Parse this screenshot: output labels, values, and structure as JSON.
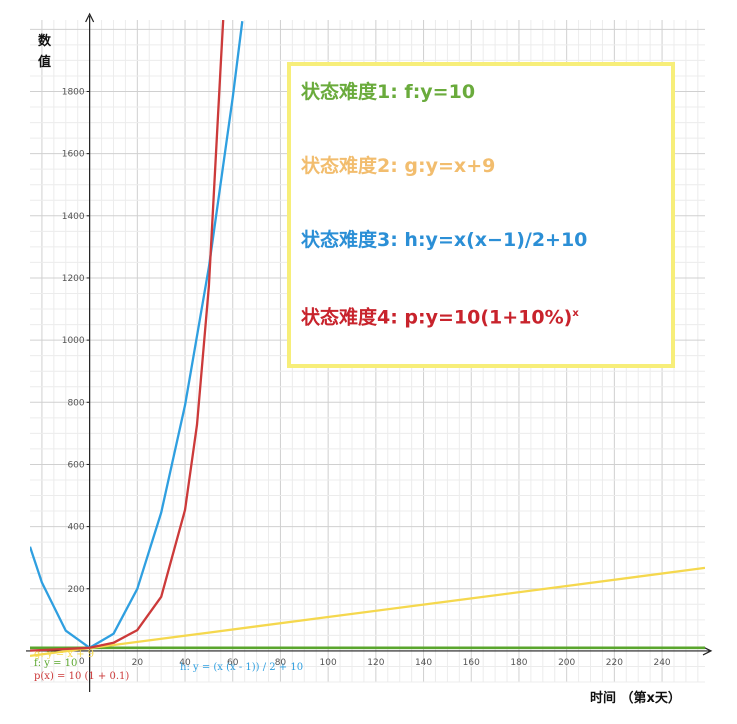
{
  "chart_data": {
    "type": "line",
    "ylabel_top": "数",
    "ylabel_bottom": "值",
    "xlabel": "时间 （第x天）",
    "xlim": [
      -25,
      258
    ],
    "ylim": [
      -100,
      2030
    ],
    "x_ticks": [
      {
        "value": 20,
        "label": "20"
      },
      {
        "value": 40,
        "label": "40"
      },
      {
        "value": 60,
        "label": "60"
      },
      {
        "value": 80,
        "label": "80"
      },
      {
        "value": 100,
        "label": "100"
      },
      {
        "value": 120,
        "label": "120"
      },
      {
        "value": 140,
        "label": "140"
      },
      {
        "value": 160,
        "label": "160"
      },
      {
        "value": 180,
        "label": "180"
      },
      {
        "value": 200,
        "label": "200"
      },
      {
        "value": 220,
        "label": "220"
      },
      {
        "value": 240,
        "label": "240"
      }
    ],
    "y_ticks": [
      {
        "value": 200,
        "label": "200"
      },
      {
        "value": 400,
        "label": "400"
      },
      {
        "value": 600,
        "label": "600"
      },
      {
        "value": 800,
        "label": "800"
      },
      {
        "value": 1000,
        "label": "1000"
      },
      {
        "value": 1200,
        "label": "1200"
      },
      {
        "value": 1400,
        "label": "1400"
      },
      {
        "value": 1600,
        "label": "1600"
      },
      {
        "value": 1800,
        "label": "1800"
      }
    ],
    "grid": true,
    "series": [
      {
        "key": "f",
        "color": "#5aa62d",
        "formula": "constant",
        "points": [
          [
            -25,
            10
          ],
          [
            0,
            10
          ],
          [
            100,
            10
          ],
          [
            200,
            10
          ],
          [
            258,
            10
          ]
        ]
      },
      {
        "key": "g",
        "color": "#f5d84e",
        "formula": "linear",
        "points": [
          [
            -25,
            -16
          ],
          [
            0,
            9
          ],
          [
            50,
            59
          ],
          [
            100,
            109
          ],
          [
            150,
            159
          ],
          [
            200,
            209
          ],
          [
            258,
            267
          ]
        ]
      },
      {
        "key": "h",
        "color": "#2f9fe0",
        "formula": "quadratic",
        "points": [
          [
            -25,
            335
          ],
          [
            -20,
            220
          ],
          [
            -10,
            65
          ],
          [
            0,
            10
          ],
          [
            10,
            55
          ],
          [
            20,
            200
          ],
          [
            30,
            445
          ],
          [
            40,
            790
          ],
          [
            50,
            1235
          ],
          [
            60,
            1780
          ],
          [
            64,
            2026
          ]
        ]
      },
      {
        "key": "p",
        "color": "#cc3a3a",
        "formula": "exponential",
        "points": [
          [
            -25,
            1
          ],
          [
            0,
            10
          ],
          [
            10,
            26
          ],
          [
            20,
            67
          ],
          [
            30,
            174
          ],
          [
            40,
            453
          ],
          [
            45,
            728
          ],
          [
            50,
            1174
          ],
          [
            55,
            1890
          ],
          [
            56,
            2030
          ]
        ]
      }
    ],
    "function_labels": [
      {
        "key": "g",
        "text": "g: y = x + 9",
        "color": "#f5d84e"
      },
      {
        "key": "f",
        "text": "f: y = 10",
        "color": "#5aa62d"
      },
      {
        "key": "h",
        "text": "h: y = (x (x - 1)) / 2 + 10",
        "color": "#2f9fe0"
      },
      {
        "key": "p",
        "text": "p(x) = 10 (1 + 0.1)",
        "color": "#cc3a3a"
      }
    ],
    "legend": {
      "position": "top-right",
      "items": [
        {
          "text": "状态难度1: f:y=10",
          "color": "#6aab3c",
          "superscript": ""
        },
        {
          "text": "状态难度2: g:y=x+9",
          "color": "#f2bd6e",
          "superscript": ""
        },
        {
          "text": "状态难度3: h:y=x(x−1)/2+10",
          "color": "#2b8fd6",
          "superscript": ""
        },
        {
          "text": "状态难度4: p:y=10(1+10%)",
          "color": "#c8232c",
          "superscript": "x"
        }
      ]
    }
  }
}
